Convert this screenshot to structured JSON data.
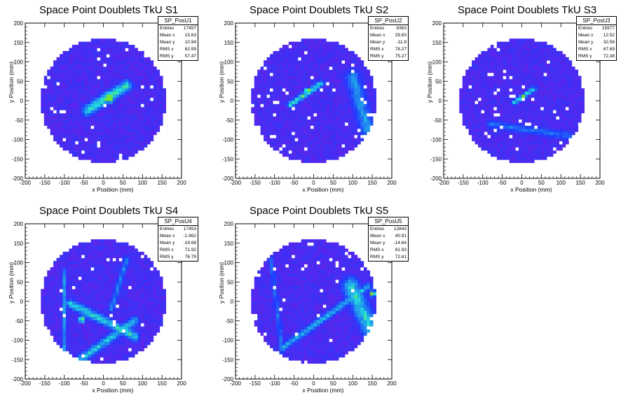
{
  "colors": {
    "background": "#6a1fe6",
    "low": "#1f3cff",
    "mid": "#22dddd",
    "high": "#ff1a1a",
    "frame": "#000000"
  },
  "chart_data": [
    {
      "type": "heatmap",
      "title": "Space Point Doublets TkU S1",
      "xlabel": "x Position (mm)",
      "ylabel": "y Position (mm)",
      "xlim": [
        -200,
        200
      ],
      "ylim": [
        -200,
        200
      ],
      "xticks": [
        "-200",
        "-150",
        "-100",
        "-50",
        "0",
        "50",
        "100",
        "150",
        "200"
      ],
      "yticks": [
        "200",
        "150",
        "100",
        "50",
        "0",
        "-50",
        "-100",
        "-150",
        "-200"
      ],
      "stats": {
        "name": "SP_PosU1",
        "rows": [
          {
            "label": "Entries",
            "value": "17457"
          },
          {
            "label": "Mean x",
            "value": "15.63"
          },
          {
            "label": "Mean y",
            "value": "10.94"
          },
          {
            "label": "RMS x",
            "value": "62.99"
          },
          {
            "label": "RMS y",
            "value": "57.47"
          }
        ]
      },
      "detector_radius": 160,
      "features": [
        {
          "kind": "line",
          "from": [
            -40,
            -25
          ],
          "to": [
            60,
            40
          ],
          "width": 22,
          "intensity": 0.6
        },
        {
          "kind": "spot",
          "at": [
            15,
            10
          ],
          "radius": 22,
          "intensity": 1.0
        }
      ]
    },
    {
      "type": "heatmap",
      "title": "Space Point Doublets TkU S2",
      "xlabel": "x Position (mm)",
      "ylabel": "y Position (mm)",
      "xlim": [
        -200,
        200
      ],
      "ylim": [
        -200,
        200
      ],
      "xticks": [
        "-200",
        "-150",
        "-100",
        "-50",
        "0",
        "50",
        "100",
        "150",
        "200"
      ],
      "yticks": [
        "200",
        "150",
        "100",
        "50",
        "0",
        "-50",
        "-100",
        "-150",
        "-200"
      ],
      "stats": {
        "name": "SP_PosU2",
        "rows": [
          {
            "label": "Entries",
            "value": "8363"
          },
          {
            "label": "Mean x",
            "value": "29.83"
          },
          {
            "label": "Mean y",
            "value": "-11.9"
          },
          {
            "label": "RMS x",
            "value": "78.27"
          },
          {
            "label": "RMS y",
            "value": "75.27"
          }
        ]
      },
      "detector_radius": 160,
      "features": [
        {
          "kind": "line",
          "from": [
            -60,
            -10
          ],
          "to": [
            20,
            45
          ],
          "width": 12,
          "intensity": 0.6
        },
        {
          "kind": "spot",
          "at": [
            -15,
            25
          ],
          "radius": 12,
          "intensity": 1.0
        },
        {
          "kind": "line",
          "from": [
            100,
            60
          ],
          "to": [
            155,
            -130
          ],
          "width": 30,
          "intensity": 0.4
        }
      ]
    },
    {
      "type": "heatmap",
      "title": "Space Point Doublets TkU S3",
      "xlabel": "x Position (mm)",
      "ylabel": "y Position (mm)",
      "xlim": [
        -200,
        200
      ],
      "ylim": [
        -200,
        200
      ],
      "xticks": [
        "-200",
        "-150",
        "-100",
        "-50",
        "0",
        "50",
        "100",
        "150",
        "200"
      ],
      "yticks": [
        "200",
        "150",
        "100",
        "50",
        "0",
        "-50",
        "-100",
        "-150",
        "-200"
      ],
      "stats": {
        "name": "SP_PosU3",
        "rows": [
          {
            "label": "Entries",
            "value": "15977"
          },
          {
            "label": "Mean x",
            "value": "12.52"
          },
          {
            "label": "Mean y",
            "value": "32.56"
          },
          {
            "label": "RMS x",
            "value": "67.69"
          },
          {
            "label": "RMS y",
            "value": "72.38"
          }
        ]
      },
      "detector_radius": 160,
      "features": [
        {
          "kind": "line",
          "from": [
            -20,
            -5
          ],
          "to": [
            30,
            30
          ],
          "width": 10,
          "intensity": 0.6
        },
        {
          "kind": "spot",
          "at": [
            5,
            10
          ],
          "radius": 10,
          "intensity": 1.0
        },
        {
          "kind": "line",
          "from": [
            -80,
            -60
          ],
          "to": [
            120,
            -90
          ],
          "width": 16,
          "intensity": 0.3
        }
      ]
    },
    {
      "type": "heatmap",
      "title": "Space Point Doublets TkU S4",
      "xlabel": "x Position (mm)",
      "ylabel": "y Position (mm)",
      "xlim": [
        -200,
        200
      ],
      "ylim": [
        -200,
        200
      ],
      "xticks": [
        "-200",
        "-150",
        "-100",
        "-50",
        "0",
        "50",
        "100",
        "150",
        "200"
      ],
      "yticks": [
        "200",
        "150",
        "100",
        "50",
        "0",
        "-50",
        "-100",
        "-150",
        "-200"
      ],
      "stats": {
        "name": "SP_PosU4",
        "rows": [
          {
            "label": "Entries",
            "value": "17453"
          },
          {
            "label": "Mean x",
            "value": "-1.962"
          },
          {
            "label": "Mean y",
            "value": "-19.68"
          },
          {
            "label": "RMS x",
            "value": "71.92"
          },
          {
            "label": "RMS y",
            "value": "76.79"
          }
        ]
      },
      "detector_radius": 160,
      "features": [
        {
          "kind": "line",
          "from": [
            -85,
            -5
          ],
          "to": [
            80,
            -90
          ],
          "width": 18,
          "intensity": 0.55
        },
        {
          "kind": "line",
          "from": [
            -60,
            -150
          ],
          "to": [
            80,
            -50
          ],
          "width": 18,
          "intensity": 0.5
        },
        {
          "kind": "line",
          "from": [
            -100,
            80
          ],
          "to": [
            -100,
            -140
          ],
          "width": 10,
          "intensity": 0.35
        },
        {
          "kind": "line",
          "from": [
            60,
            110
          ],
          "to": [
            20,
            -20
          ],
          "width": 12,
          "intensity": 0.35
        },
        {
          "kind": "spot",
          "at": [
            -55,
            -45
          ],
          "radius": 14,
          "intensity": 0.8
        },
        {
          "kind": "spot",
          "at": [
            55,
            -75
          ],
          "radius": 12,
          "intensity": 0.8
        }
      ]
    },
    {
      "type": "heatmap",
      "title": "Space Point Doublets TkU S5",
      "xlabel": "x Position (mm)",
      "ylabel": "y Position (mm)",
      "xlim": [
        -200,
        200
      ],
      "ylim": [
        -200,
        200
      ],
      "xticks": [
        "-200",
        "-150",
        "-100",
        "-50",
        "0",
        "50",
        "100",
        "150",
        "200"
      ],
      "yticks": [
        "200",
        "150",
        "100",
        "50",
        "0",
        "-50",
        "-100",
        "-150",
        "-200"
      ],
      "stats": {
        "name": "SP_PosU5",
        "rows": [
          {
            "label": "Entries",
            "value": "12843"
          },
          {
            "label": "Mean x",
            "value": "40.91"
          },
          {
            "label": "Mean y",
            "value": "-14.64"
          },
          {
            "label": "RMS x",
            "value": "81.93"
          },
          {
            "label": "RMS y",
            "value": "72.61"
          }
        ]
      },
      "detector_radius": 160,
      "features": [
        {
          "kind": "line",
          "from": [
            -80,
            -120
          ],
          "to": [
            140,
            40
          ],
          "width": 14,
          "intensity": 0.45
        },
        {
          "kind": "line",
          "from": [
            95,
            40
          ],
          "to": [
            155,
            -90
          ],
          "width": 34,
          "intensity": 0.55
        },
        {
          "kind": "spot",
          "at": [
            150,
            20
          ],
          "radius": 12,
          "intensity": 0.95
        },
        {
          "kind": "line",
          "from": [
            -110,
            110
          ],
          "to": [
            -80,
            -130
          ],
          "width": 10,
          "intensity": 0.3
        }
      ]
    }
  ]
}
